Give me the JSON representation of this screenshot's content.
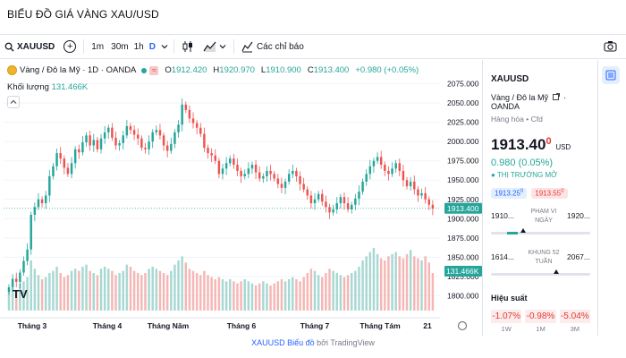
{
  "page": {
    "title": "BIỂU ĐỒ GIÁ VÀNG XAU/USD"
  },
  "toolbar": {
    "symbol": "XAUUSD",
    "intervals": [
      "1m",
      "30m",
      "1h",
      "D"
    ],
    "active_interval": "D",
    "indicators_label": "Các chỉ báo"
  },
  "legend": {
    "name": "Vàng / Đô la Mỹ · 1D · OANDA",
    "open": "1912.420",
    "high": "1920.970",
    "low": "1910.900",
    "close": "1913.400",
    "change": "+0.980 (+0.05%)",
    "volume_label": "Khối lượng",
    "volume_value": "131.466K"
  },
  "chart_data": {
    "type": "candlestick",
    "x_tick_labels": [
      "Tháng 3",
      "Tháng 4",
      "Tháng Năm",
      "Tháng 6",
      "Tháng 7",
      "Tháng Tám",
      "21"
    ],
    "y_ticks": [
      1800,
      1825,
      1850,
      1875,
      1900,
      1925,
      1950,
      1975,
      2000,
      2025,
      2050,
      2075
    ],
    "y_range": [
      1790,
      2085
    ],
    "last_price": 1913.4,
    "last_price_label": "1913.400",
    "last_volume_label": "131.466K",
    "up_color": "#26a69a",
    "down_color": "#ef5350",
    "closes": [
      1811,
      1822,
      1818,
      1830,
      1845,
      1860,
      1905,
      1915,
      1925,
      1920,
      1930,
      1955,
      1968,
      1985,
      1978,
      1966,
      1958,
      1972,
      1990,
      1986,
      1999,
      2008,
      1995,
      2002,
      1990,
      2004,
      2012,
      2018,
      2005,
      1995,
      1998,
      2008,
      2020,
      2015,
      2009,
      2004,
      1992,
      1990,
      2000,
      2012,
      2015,
      2008,
      1995,
      1988,
      1997,
      2012,
      2022,
      2048,
      2041,
      2030,
      2024,
      2018,
      2010,
      1992,
      1985,
      1982,
      1975,
      1958,
      1965,
      1972,
      1978,
      1970,
      1962,
      1955,
      1958,
      1965,
      1970,
      1960,
      1952,
      1955,
      1962,
      1958,
      1952,
      1945,
      1940,
      1948,
      1958,
      1962,
      1955,
      1945,
      1938,
      1930,
      1920,
      1925,
      1932,
      1922,
      1915,
      1908,
      1912,
      1920,
      1928,
      1920,
      1912,
      1918,
      1926,
      1935,
      1948,
      1958,
      1968,
      1975,
      1980,
      1970,
      1962,
      1958,
      1965,
      1972,
      1962,
      1950,
      1942,
      1948,
      1938,
      1930,
      1933,
      1925,
      1918,
      1913
    ],
    "volumes": [
      0.9,
      1.1,
      1.0,
      1.3,
      1.4,
      1.6,
      2.4,
      2.0,
      1.7,
      1.5,
      1.6,
      1.8,
      1.9,
      2.1,
      1.8,
      1.6,
      1.7,
      1.9,
      2.0,
      1.9,
      2.1,
      2.2,
      1.9,
      1.8,
      1.7,
      2.0,
      2.1,
      2.0,
      1.9,
      1.7,
      1.8,
      1.9,
      2.2,
      2.1,
      1.9,
      1.8,
      1.7,
      1.8,
      2.0,
      2.1,
      2.0,
      1.9,
      1.8,
      1.7,
      1.9,
      2.2,
      2.4,
      2.6,
      2.3,
      2.0,
      1.9,
      1.8,
      1.7,
      1.9,
      1.7,
      1.6,
      1.5,
      1.6,
      1.5,
      1.4,
      1.5,
      1.4,
      1.3,
      1.4,
      1.5,
      1.4,
      1.3,
      1.2,
      1.3,
      1.4,
      1.3,
      1.2,
      1.3,
      1.4,
      1.5,
      1.4,
      1.5,
      1.6,
      1.5,
      1.4,
      1.6,
      1.8,
      2.0,
      1.9,
      1.7,
      1.6,
      1.8,
      2.0,
      1.9,
      1.8,
      1.7,
      1.6,
      1.7,
      1.8,
      1.9,
      2.1,
      2.4,
      2.6,
      2.8,
      3.0,
      2.7,
      2.5,
      2.4,
      2.6,
      2.7,
      2.8,
      2.6,
      2.5,
      2.7,
      2.9,
      2.6,
      2.5,
      2.4,
      2.6,
      2.3,
      1.8
    ]
  },
  "panel": {
    "symbol": "XAUUSD",
    "name": "Vàng / Đô la Mỹ",
    "exchange": "OANDA",
    "type": "Hàng hóa • Cfd",
    "price_main": "1913.40",
    "price_small": "0",
    "currency": "USD",
    "change": "0.980 (0.05%)",
    "status": "● THỊ TRƯỜNG MỞ",
    "bid": "1913.25",
    "bid_sup": "0",
    "ask": "1913.55",
    "ask_sup": "0",
    "day_range": {
      "low": "1910...",
      "high": "1920...",
      "label": "PHẠM VI NGÀY",
      "position": 0.32
    },
    "year_range": {
      "low": "1614...",
      "high": "2067...",
      "label": "KHUNG 52 TUẦN",
      "position": 0.66
    },
    "performance_title": "Hiệu suất",
    "performance": [
      {
        "value": "-1.07%",
        "label": "1W"
      },
      {
        "value": "-0.98%",
        "label": "1M"
      },
      {
        "value": "-5.04%",
        "label": "3M"
      }
    ]
  },
  "footer": {
    "link": "XAUUSD Biểu đồ",
    "by": "bởi TradingView"
  }
}
